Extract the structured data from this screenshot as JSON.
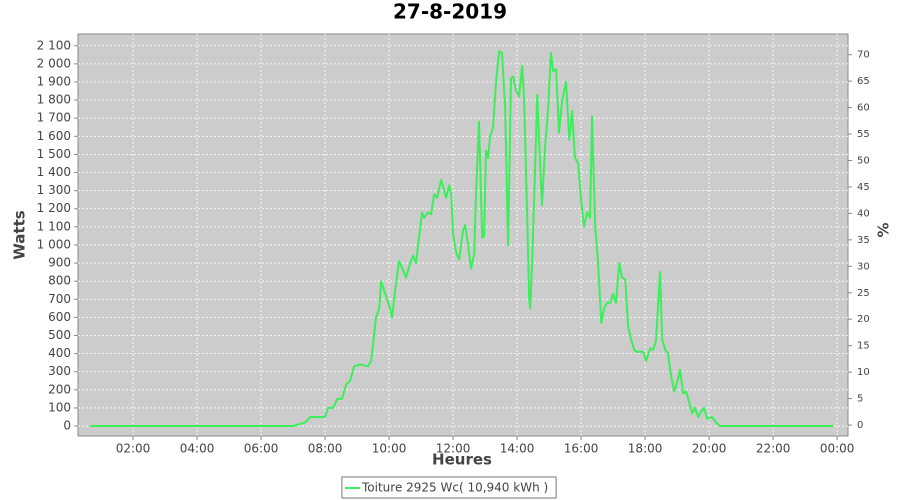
{
  "chart_data": {
    "type": "line",
    "title": "27-8-2019",
    "x_label": "Heures",
    "y_label": "Watts",
    "y2_label": "%",
    "x": [
      0.66,
      7.0,
      7.38,
      7.53,
      7.69,
      8.0,
      8.09,
      8.25,
      8.38,
      8.53,
      8.66,
      8.78,
      8.91,
      9.09,
      9.34,
      9.44,
      9.53,
      9.59,
      9.69,
      9.75,
      9.84,
      9.94,
      10.03,
      10.09,
      10.19,
      10.31,
      10.44,
      10.53,
      10.66,
      10.75,
      10.84,
      10.94,
      11.03,
      11.09,
      11.22,
      11.31,
      11.41,
      11.5,
      11.63,
      11.72,
      11.78,
      11.88,
      11.94,
      12.0,
      12.09,
      12.19,
      12.31,
      12.38,
      12.47,
      12.56,
      12.66,
      12.72,
      12.81,
      12.91,
      12.97,
      13.03,
      13.09,
      13.16,
      13.25,
      13.34,
      13.44,
      13.53,
      13.63,
      13.72,
      13.81,
      13.88,
      13.97,
      14.06,
      14.16,
      14.22,
      14.31,
      14.38,
      14.41,
      14.47,
      14.56,
      14.63,
      14.72,
      14.78,
      14.88,
      14.97,
      15.06,
      15.13,
      15.22,
      15.31,
      15.41,
      15.53,
      15.63,
      15.72,
      15.81,
      15.91,
      16.0,
      16.09,
      16.19,
      16.28,
      16.34,
      16.44,
      16.53,
      16.63,
      16.72,
      16.81,
      16.91,
      17.0,
      17.09,
      17.19,
      17.28,
      17.38,
      17.47,
      17.56,
      17.66,
      17.75,
      17.94,
      18.03,
      18.16,
      18.25,
      18.34,
      18.47,
      18.53,
      18.63,
      18.72,
      18.81,
      18.91,
      19.0,
      19.09,
      19.19,
      19.28,
      19.38,
      19.47,
      19.56,
      19.66,
      19.75,
      19.84,
      19.94,
      20.09,
      20.22,
      20.34,
      23.88
    ],
    "series": [
      {
        "name": "Toiture 2925 Wc( 10,940 kWh )",
        "color": "#3cee5a",
        "values": [
          0,
          0,
          20,
          50,
          50,
          50,
          100,
          100,
          150,
          150,
          230,
          250,
          330,
          340,
          330,
          360,
          500,
          600,
          650,
          800,
          750,
          700,
          650,
          600,
          750,
          910,
          860,
          820,
          900,
          940,
          900,
          1050,
          1180,
          1150,
          1180,
          1170,
          1280,
          1260,
          1360,
          1300,
          1260,
          1330,
          1280,
          1060,
          960,
          920,
          1080,
          1110,
          1000,
          870,
          950,
          1300,
          1680,
          1040,
          1050,
          1520,
          1480,
          1600,
          1650,
          1900,
          2070,
          2060,
          1750,
          1000,
          1920,
          1930,
          1850,
          1820,
          1990,
          1800,
          1200,
          700,
          650,
          900,
          1400,
          1830,
          1450,
          1220,
          1550,
          1750,
          2060,
          1960,
          1970,
          1620,
          1800,
          1900,
          1580,
          1740,
          1480,
          1450,
          1250,
          1100,
          1180,
          1150,
          1710,
          1100,
          900,
          570,
          650,
          680,
          680,
          730,
          680,
          900,
          820,
          810,
          550,
          480,
          420,
          410,
          410,
          360,
          430,
          420,
          470,
          850,
          480,
          420,
          400,
          280,
          190,
          240,
          310,
          180,
          190,
          130,
          70,
          100,
          50,
          80,
          100,
          40,
          50,
          20,
          0,
          0
        ]
      }
    ],
    "xlim": [
      0.28,
      24.34
    ],
    "ylim": [
      -55,
      2165
    ],
    "y2lim": [
      -2.07,
      73.9
    ],
    "xticks": [
      {
        "value": 2,
        "label": "02:00"
      },
      {
        "value": 4,
        "label": "04:00"
      },
      {
        "value": 6,
        "label": "06:00"
      },
      {
        "value": 8,
        "label": "08:00"
      },
      {
        "value": 10,
        "label": "10:00"
      },
      {
        "value": 12,
        "label": "12:00"
      },
      {
        "value": 14,
        "label": "14:00"
      },
      {
        "value": 16,
        "label": "16:00"
      },
      {
        "value": 18,
        "label": "18:00"
      },
      {
        "value": 20,
        "label": "20:00"
      },
      {
        "value": 22,
        "label": "22:00"
      },
      {
        "value": 24,
        "label": "00:00"
      }
    ],
    "yticks": [
      0,
      100,
      200,
      300,
      400,
      500,
      600,
      700,
      800,
      900,
      {
        "value": 1000,
        "label": "1 000"
      },
      {
        "value": 1100,
        "label": "1 100"
      },
      {
        "value": 1200,
        "label": "1 200"
      },
      {
        "value": 1300,
        "label": "1 300"
      },
      {
        "value": 1400,
        "label": "1 400"
      },
      {
        "value": 1500,
        "label": "1 500"
      },
      {
        "value": 1600,
        "label": "1 600"
      },
      {
        "value": 1700,
        "label": "1 700"
      },
      {
        "value": 1800,
        "label": "1 800"
      },
      {
        "value": 1900,
        "label": "1 900"
      },
      {
        "value": 2000,
        "label": "2 000"
      },
      {
        "value": 2100,
        "label": "2 100"
      }
    ],
    "y2ticks": [
      0,
      5,
      10,
      15,
      20,
      25,
      30,
      35,
      40,
      45,
      50,
      55,
      60,
      65,
      70
    ],
    "grid": true,
    "background": "#cccccc",
    "legend": "bottom"
  }
}
